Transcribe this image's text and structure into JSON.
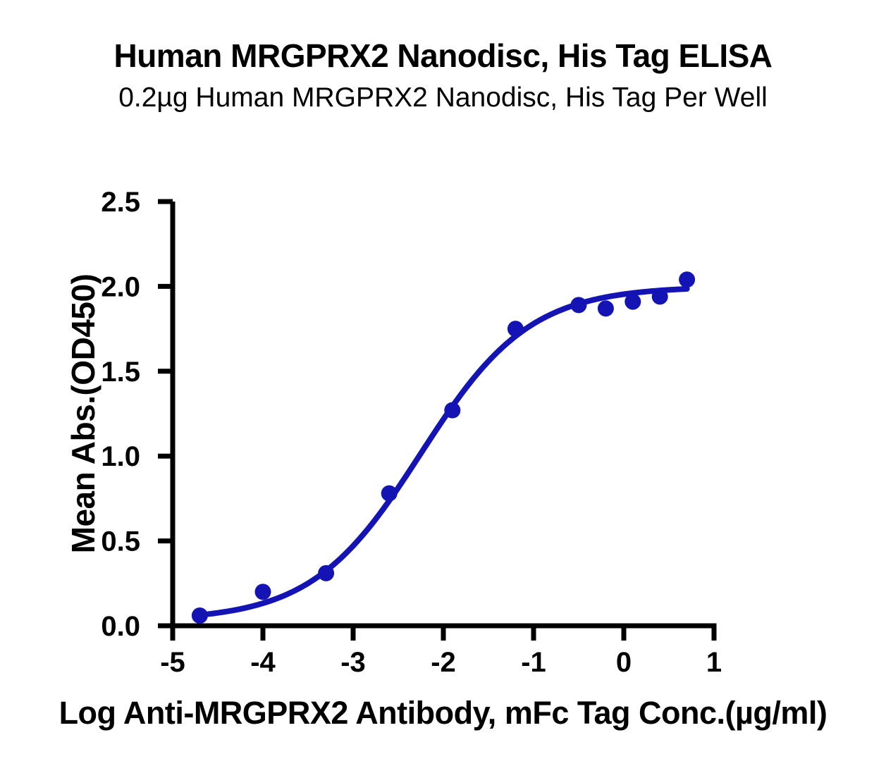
{
  "page": {
    "background_color": "#ffffff",
    "text_color": "#000000"
  },
  "chart_data": {
    "type": "scatter",
    "title": "Human MRGPRX2 Nanodisc, His Tag ELISA",
    "subtitle": "0.2µg Human MRGPRX2 Nanodisc, His Tag Per Well",
    "xlabel": "Log Anti-MRGPRX2 Antibody, mFc Tag Conc.(µg/ml)",
    "ylabel": "Mean Abs.(OD450)",
    "xlim": [
      -5,
      1
    ],
    "ylim": [
      0,
      2.5
    ],
    "grid": false,
    "legend": "none",
    "frame": "left-bottom-axes-only",
    "xticks": {
      "values": [
        -5,
        -4,
        -3,
        -2,
        -1,
        0,
        1
      ],
      "labels": [
        "-5",
        "-4",
        "-3",
        "-2",
        "-1",
        "0",
        "1"
      ]
    },
    "yticks": {
      "values": [
        0,
        0.5,
        1,
        1.5,
        2,
        2.5
      ],
      "labels": [
        "0.0",
        "0.5",
        "1.0",
        "1.5",
        "2.0",
        "2.5"
      ]
    },
    "points": [
      {
        "x": -4.7,
        "y": 0.06
      },
      {
        "x": -4.0,
        "y": 0.2
      },
      {
        "x": -3.3,
        "y": 0.31
      },
      {
        "x": -2.6,
        "y": 0.78
      },
      {
        "x": -1.9,
        "y": 1.27
      },
      {
        "x": -1.2,
        "y": 1.75
      },
      {
        "x": -0.5,
        "y": 1.89
      },
      {
        "x": -0.2,
        "y": 1.87
      },
      {
        "x": 0.1,
        "y": 1.91
      },
      {
        "x": 0.4,
        "y": 1.94
      },
      {
        "x": 0.7,
        "y": 2.04
      }
    ],
    "fit_curve": {
      "model": "4PL",
      "bottom": 0.03,
      "top": 2.0,
      "logEC50": -2.25,
      "hill": 0.72,
      "x_range": [
        -4.72,
        0.7
      ]
    },
    "colors": {
      "series": "#1414B4",
      "axis": "#000000"
    }
  }
}
